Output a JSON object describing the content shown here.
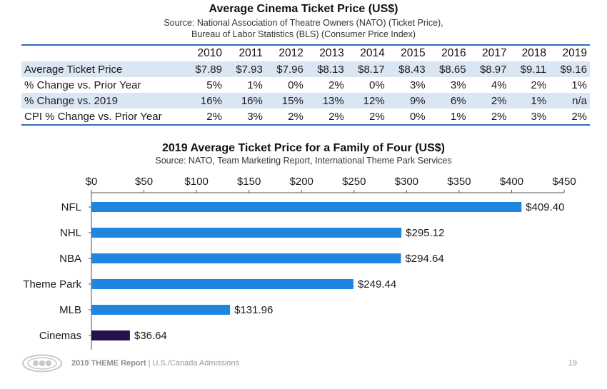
{
  "table_section": {
    "title": "Average Cinema Ticket Price (US$)",
    "source_line1": "Source: National Association of Theatre Owners (NATO) (Ticket Price),",
    "source_line2": "Bureau of Labor Statistics (BLS) (Consumer Price Index)",
    "years": [
      "2010",
      "2011",
      "2012",
      "2013",
      "2014",
      "2015",
      "2016",
      "2017",
      "2018",
      "2019"
    ],
    "rows": [
      {
        "label": "Average Ticket Price",
        "values": [
          "$7.89",
          "$7.93",
          "$7.96",
          "$8.13",
          "$8.17",
          "$8.43",
          "$8.65",
          "$8.97",
          "$9.11",
          "$9.16"
        ]
      },
      {
        "label": "% Change vs. Prior Year",
        "values": [
          "5%",
          "1%",
          "0%",
          "2%",
          "0%",
          "3%",
          "3%",
          "4%",
          "2%",
          "1%"
        ]
      },
      {
        "label": "% Change vs. 2019",
        "values": [
          "16%",
          "16%",
          "15%",
          "13%",
          "12%",
          "9%",
          "6%",
          "2%",
          "1%",
          "n/a"
        ]
      },
      {
        "label": "CPI % Change vs. Prior Year",
        "values": [
          "2%",
          "3%",
          "2%",
          "2%",
          "2%",
          "0%",
          "1%",
          "2%",
          "3%",
          "2%"
        ]
      }
    ]
  },
  "chart_data": [
    {
      "type": "table",
      "title": "Average Cinema Ticket Price (US$)",
      "columns": [
        "2010",
        "2011",
        "2012",
        "2013",
        "2014",
        "2015",
        "2016",
        "2017",
        "2018",
        "2019"
      ],
      "rows": [
        {
          "label": "Average Ticket Price",
          "values": [
            7.89,
            7.93,
            7.96,
            8.13,
            8.17,
            8.43,
            8.65,
            8.97,
            9.11,
            9.16
          ]
        },
        {
          "label": "% Change vs. Prior Year",
          "values": [
            5,
            1,
            0,
            2,
            0,
            3,
            3,
            4,
            2,
            1
          ]
        },
        {
          "label": "% Change vs. 2019",
          "values": [
            16,
            16,
            15,
            13,
            12,
            9,
            6,
            2,
            1,
            null
          ]
        },
        {
          "label": "CPI % Change vs. Prior Year",
          "values": [
            2,
            3,
            2,
            2,
            2,
            0,
            1,
            2,
            3,
            2
          ]
        }
      ]
    },
    {
      "type": "bar",
      "orientation": "horizontal",
      "title": "2019 Average Ticket Price for a Family of Four (US$)",
      "subtitle": "Source: NATO, Team Marketing Report, International Theme Park Services",
      "categories": [
        "NFL",
        "NHL",
        "NBA",
        "Theme Park",
        "MLB",
        "Cinemas"
      ],
      "values": [
        409.4,
        295.12,
        294.64,
        249.44,
        131.96,
        36.64
      ],
      "value_labels": [
        "$409.40",
        "$295.12",
        "$294.64",
        "$249.44",
        "$131.96",
        "$36.64"
      ],
      "xlim": [
        0,
        450
      ],
      "xticks": [
        0,
        50,
        100,
        150,
        200,
        250,
        300,
        350,
        400,
        450
      ],
      "xtick_labels": [
        "$0",
        "$50",
        "$100",
        "$150",
        "$200",
        "$250",
        "$300",
        "$350",
        "$400",
        "$450"
      ],
      "axis_position": "top",
      "grid": false,
      "bar_color": "#1f86e0",
      "highlight_color": "#24124a",
      "highlight_category": "Cinemas"
    }
  ],
  "footer": {
    "report_bold": "2019 THEME Report",
    "report_rest": " | U.S./Canada Admissions",
    "page_number": "19"
  },
  "colors": {
    "accent_blue": "#2f6fc2",
    "row_shade": "#dbe6f4"
  }
}
